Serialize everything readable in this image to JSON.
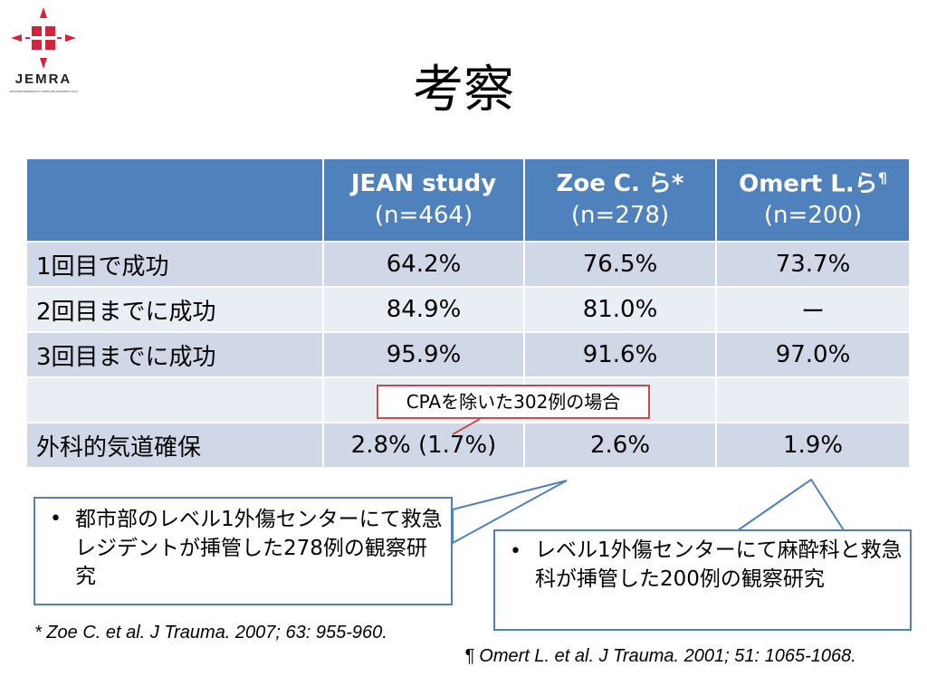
{
  "logo": {
    "name": "JEMRA",
    "subtitle": "JAPANESE EMERGENCY MEDICINE RESEARCH ALLIANCE"
  },
  "title": "考察",
  "table": {
    "headers": [
      {
        "name": "",
        "n": "",
        "mark": ""
      },
      {
        "name": "JEAN study",
        "n": "(n=464)",
        "mark": ""
      },
      {
        "name": "Zoe C. ら",
        "n": "(n=278)",
        "mark": "*"
      },
      {
        "name": "Omert L.ら",
        "n": "(n=200)",
        "mark": "¶"
      }
    ],
    "rows": [
      {
        "label": "1回目で成功",
        "values": [
          "64.2%",
          "76.5%",
          "73.7%"
        ]
      },
      {
        "label": "2回目までに成功",
        "values": [
          "84.9%",
          "81.0%",
          "ー"
        ]
      },
      {
        "label": "3回目までに成功",
        "values": [
          "95.9%",
          "91.6%",
          "97.0%"
        ]
      },
      {
        "label": "",
        "values": [
          "",
          "",
          ""
        ]
      },
      {
        "label": "外科的気道確保",
        "values": [
          "2.8% (1.7%)",
          "2.6%",
          "1.9%"
        ]
      }
    ]
  },
  "note": "CPAを除いた302例の場合",
  "callouts": {
    "left": {
      "bullet": "•",
      "text": "都市部のレベル1外傷センターにて救急レジデントが挿管した278例の観察研究"
    },
    "right": {
      "bullet": "•",
      "text": "レベル1外傷センターにて麻酔科と救急科が挿管した200例の観察研究"
    }
  },
  "references": {
    "zoe": "*  Zoe C. et al. J Trauma. 2007; 63: 955-960.",
    "omert": "¶  Omert L. et al. J Trauma. 2001; 51: 1065-1068."
  },
  "colors": {
    "header": "#4f81bd",
    "row_odd": "#d0d8e8",
    "row_even": "#e9edf4",
    "note_border": "#c0504d",
    "logo_red": "#d6223a"
  }
}
